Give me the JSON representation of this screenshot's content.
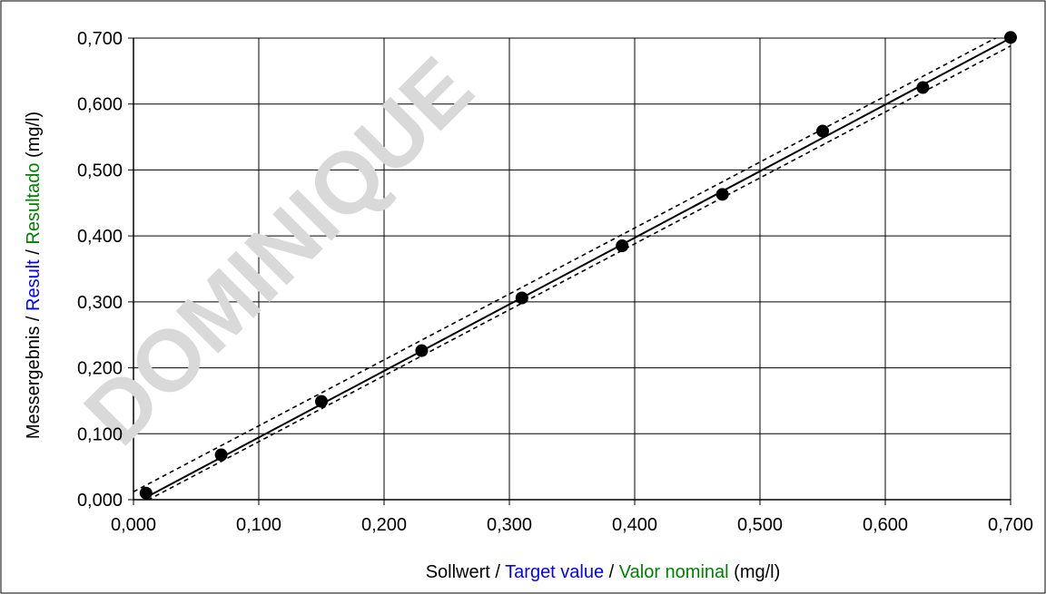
{
  "watermark": "DOMINIQUE",
  "chart_data": {
    "type": "scatter",
    "xlim": [
      0.0,
      0.7
    ],
    "ylim": [
      0.0,
      0.7
    ],
    "x_ticks": [
      "0,000",
      "0,100",
      "0,200",
      "0,300",
      "0,400",
      "0,500",
      "0,600",
      "0,700"
    ],
    "y_ticks": [
      "0,000",
      "0,100",
      "0,200",
      "0,300",
      "0,400",
      "0,500",
      "0,600",
      "0,700"
    ],
    "grid": true,
    "xlabel_parts": [
      {
        "text": "Sollwert / ",
        "color": "#000000"
      },
      {
        "text": "Target value",
        "color": "#0000ff"
      },
      {
        "text": " / ",
        "color": "#000000"
      },
      {
        "text": "Valor nominal",
        "color": "#008000"
      },
      {
        "text": " (mg/l)",
        "color": "#000000"
      }
    ],
    "ylabel_parts": [
      {
        "text": "Messergebnis / ",
        "color": "#000000"
      },
      {
        "text": "Result",
        "color": "#0000ff"
      },
      {
        "text": " / ",
        "color": "#000000"
      },
      {
        "text": "Resultado",
        "color": "#008000"
      },
      {
        "text": " (mg/l)",
        "color": "#000000"
      }
    ],
    "points": [
      {
        "x": 0.01,
        "y": 0.01
      },
      {
        "x": 0.07,
        "y": 0.068
      },
      {
        "x": 0.15,
        "y": 0.149
      },
      {
        "x": 0.23,
        "y": 0.226
      },
      {
        "x": 0.31,
        "y": 0.306
      },
      {
        "x": 0.39,
        "y": 0.385
      },
      {
        "x": 0.47,
        "y": 0.463
      },
      {
        "x": 0.55,
        "y": 0.559
      },
      {
        "x": 0.63,
        "y": 0.625
      },
      {
        "x": 0.7,
        "y": 0.701
      }
    ],
    "regression_line": {
      "x": [
        0.01,
        0.7
      ],
      "y": [
        0.0035,
        0.7
      ]
    },
    "confidence_bands": [
      {
        "x": [
          0.0,
          0.7
        ],
        "y": [
          0.012,
          0.712
        ],
        "style": "dashed"
      },
      {
        "x": [
          0.0,
          0.7
        ],
        "y": [
          -0.012,
          0.688
        ],
        "style": "dashed"
      }
    ]
  }
}
